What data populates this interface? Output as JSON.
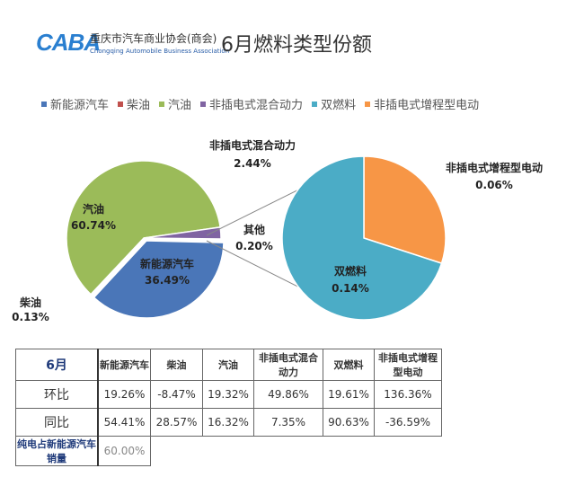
{
  "header": {
    "logo": "CABA",
    "org_name": "重庆市汽车商业协会(商会)",
    "org_name_en": "Chongqing Automobile Business Association",
    "title": "6月燃料类型份额"
  },
  "colors": {
    "新能源汽车": "#4a76b8",
    "柴油": "#c0504d",
    "汽油": "#9bbb59",
    "非插电式混合动力": "#8064a2",
    "双燃料": "#4bacc6",
    "非插电式增程型电动": "#f79646",
    "其他": "#8064a2"
  },
  "chart_data": {
    "type": "pie",
    "legend": [
      "新能源汽车",
      "柴油",
      "汽油",
      "非插电式混合动力",
      "双燃料",
      "非插电式增程型电动"
    ],
    "legend_position": "top",
    "main_pie": [
      {
        "name": "新能源汽车",
        "value": 36.49,
        "label": "36.49%"
      },
      {
        "name": "柴油",
        "value": 0.13,
        "label": "0.13%"
      },
      {
        "name": "汽油",
        "value": 60.74,
        "label": "60.74%"
      },
      {
        "name": "非插电式混合动力",
        "value": 2.44,
        "label": "2.44%"
      },
      {
        "name": "其他",
        "value": 0.2,
        "label": "0.20%"
      }
    ],
    "secondary_pie": [
      {
        "name": "双燃料",
        "value": 0.14,
        "label": "0.14%"
      },
      {
        "name": "非插电式增程型电动",
        "value": 0.06,
        "label": "0.06%"
      }
    ]
  },
  "table": {
    "header": [
      "6月",
      "新能源汽车",
      "柴油",
      "汽油",
      "非插电式混合动力",
      "双燃料",
      "非插电式增程型电动"
    ],
    "rows": [
      [
        "环比",
        "19.26%",
        "-8.47%",
        "19.32%",
        "49.86%",
        "19.61%",
        "136.36%"
      ],
      [
        "同比",
        "54.41%",
        "28.57%",
        "16.32%",
        "7.35%",
        "90.63%",
        "-36.59%"
      ],
      [
        "纯电占新能源汽车销量",
        "60.00%"
      ]
    ]
  }
}
